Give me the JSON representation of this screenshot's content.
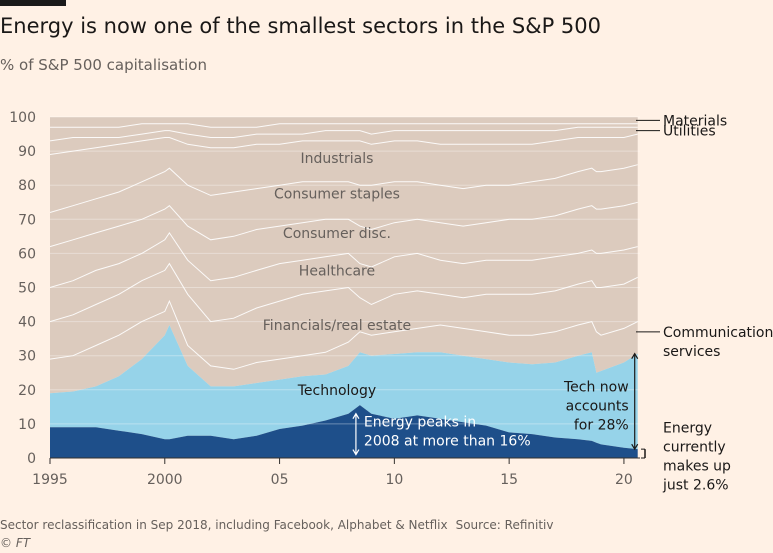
{
  "header": {
    "title": "Energy is now one of the smallest sectors in the S&P 500",
    "subtitle": "% of S&P 500 capitalisation"
  },
  "footer": {
    "note": "Sector reclassification in Sep 2018, including Facebook, Alphabet & Netflix",
    "source": "Source: Refinitiv",
    "copyright": "© FT"
  },
  "colors": {
    "background": "#fff1e5",
    "energy": "#1e4f8a",
    "technology": "#96d3e9",
    "other_sectors": "#dccbbe",
    "sector_lines": "#ffffff",
    "axis_text": "#66605c",
    "annotation_text": "#33302e"
  },
  "chart_data": {
    "type": "area",
    "stacked": true,
    "ylim": [
      0,
      100
    ],
    "xlim": [
      1995,
      2020.7
    ],
    "x_ticks": [
      1995,
      2000,
      2005,
      2010,
      2015,
      2020
    ],
    "x_tick_labels": [
      "1995",
      "2000",
      "05",
      "10",
      "15",
      "20"
    ],
    "y_ticks": [
      0,
      10,
      20,
      30,
      40,
      50,
      60,
      70,
      80,
      90,
      100
    ],
    "y_tick_labels": [
      "0",
      "10",
      "20",
      "30",
      "40",
      "50",
      "60",
      "70",
      "80",
      "90",
      "100"
    ],
    "grid": true,
    "x": [
      1995,
      1996,
      1997,
      1998,
      1999,
      2000,
      2000.2,
      2001,
      2002,
      2003,
      2004,
      2005,
      2006,
      2007,
      2008,
      2008.5,
      2009,
      2010,
      2011,
      2012,
      2013,
      2014,
      2015,
      2016,
      2017,
      2018,
      2018.6,
      2018.8,
      2019,
      2020,
      2020.6
    ],
    "series_cumulative": {
      "energy": [
        9,
        9,
        9,
        8,
        7,
        5.5,
        5.5,
        6.5,
        6.5,
        5.5,
        6.5,
        8.5,
        9.5,
        11,
        13,
        15.5,
        13,
        11.5,
        12.5,
        11.5,
        10.5,
        9.5,
        7.5,
        7,
        6,
        5.5,
        5,
        4.5,
        4,
        3,
        2.6
      ],
      "technology": [
        19,
        19.5,
        21,
        24,
        29,
        36,
        39,
        27,
        21,
        21,
        22,
        23,
        24,
        24.5,
        27,
        31,
        30,
        30.5,
        31,
        31,
        30,
        29,
        28,
        27.5,
        28,
        30,
        31,
        25,
        25.5,
        28,
        30.6
      ],
      "communication": [
        29,
        30,
        33,
        36,
        40,
        43,
        46,
        33,
        27,
        26,
        28,
        29,
        30,
        31,
        34,
        37,
        36,
        37,
        38,
        39,
        38,
        37,
        36,
        36,
        37,
        39,
        40,
        37,
        36,
        38,
        40
      ],
      "financials": [
        40,
        42,
        45,
        48,
        52,
        55,
        57,
        48,
        40,
        41,
        44,
        46,
        48,
        49,
        50,
        47,
        45,
        48,
        49,
        48,
        47,
        48,
        48,
        48,
        49,
        51,
        52,
        50,
        50,
        51,
        53
      ],
      "healthcare": [
        50,
        52,
        55,
        57,
        60,
        64,
        66,
        58,
        52,
        53,
        55,
        57,
        58,
        59,
        60,
        57,
        56,
        59,
        60,
        58,
        57,
        58,
        58,
        58,
        59,
        60,
        61,
        60,
        60,
        61,
        62
      ],
      "consumer_disc": [
        62,
        64,
        66,
        68,
        70,
        73,
        74,
        68,
        64,
        65,
        67,
        68,
        69,
        70,
        70,
        68,
        67,
        69,
        70,
        69,
        68,
        69,
        70,
        70,
        71,
        73,
        74,
        73,
        73,
        74,
        75
      ],
      "consumer_staples": [
        72,
        74,
        76,
        78,
        81,
        84,
        85,
        80,
        77,
        78,
        79,
        80,
        81,
        81,
        81,
        80,
        80,
        81,
        81,
        80,
        79,
        80,
        80,
        81,
        82,
        84,
        85,
        84,
        84,
        85,
        86
      ],
      "industrials": [
        89,
        90,
        91,
        92,
        93,
        94,
        94,
        92,
        91,
        91,
        92,
        92,
        93,
        93,
        93,
        93,
        92,
        93,
        93,
        92,
        92,
        92,
        92,
        92,
        93,
        94,
        94,
        94,
        94,
        94,
        95
      ],
      "utilities": [
        93,
        94,
        94,
        94,
        95,
        96,
        96,
        95,
        94,
        94,
        95,
        95,
        95,
        96,
        96,
        96,
        95,
        96,
        96,
        96,
        96,
        96,
        96,
        96,
        96,
        97,
        97,
        97,
        97,
        97,
        97
      ],
      "materials": [
        97,
        97,
        97,
        97,
        98,
        98,
        98,
        98,
        97,
        97,
        97,
        98,
        98,
        98,
        98,
        98,
        98,
        98,
        98,
        98,
        98,
        98,
        98,
        98,
        98,
        98,
        98,
        98,
        98,
        98,
        98
      ],
      "top": [
        100,
        100,
        100,
        100,
        100,
        100,
        100,
        100,
        100,
        100,
        100,
        100,
        100,
        100,
        100,
        100,
        100,
        100,
        100,
        100,
        100,
        100,
        100,
        100,
        100,
        100,
        100,
        100,
        100,
        100,
        100
      ]
    },
    "inner_labels": [
      {
        "text": "Industrials",
        "x": 2007.5,
        "y": 88
      },
      {
        "text": "Consumer staples",
        "x": 2007.5,
        "y": 77.5
      },
      {
        "text": "Consumer disc.",
        "x": 2007.5,
        "y": 66
      },
      {
        "text": "Healthcare",
        "x": 2007.5,
        "y": 55
      },
      {
        "text": "Financials/real estate",
        "x": 2007.5,
        "y": 39
      },
      {
        "text": "Technology",
        "x": 2007.5,
        "y": 20
      }
    ],
    "right_labels": [
      {
        "lines": [
          "Materials"
        ],
        "y": 99
      },
      {
        "lines": [
          "Utilities"
        ],
        "y": 96
      },
      {
        "lines": [
          "Communication",
          "services"
        ],
        "y": 37
      }
    ],
    "annotations": {
      "energy_peak": {
        "lines": [
          "Energy peaks in",
          "2008 at more than 16%"
        ],
        "x": 2008.5,
        "y0": 1,
        "y1": 13
      },
      "tech_now": {
        "lines": [
          "Tech now",
          "accounts",
          "for 28%"
        ],
        "x": 2020.6,
        "y0": 2.6,
        "y1": 30.6
      },
      "energy_now": {
        "lines": [
          "Energy",
          "currently",
          "makes up",
          "just 2.6%"
        ],
        "x": 2020.6,
        "y0": 0,
        "y1": 2.6
      }
    }
  }
}
